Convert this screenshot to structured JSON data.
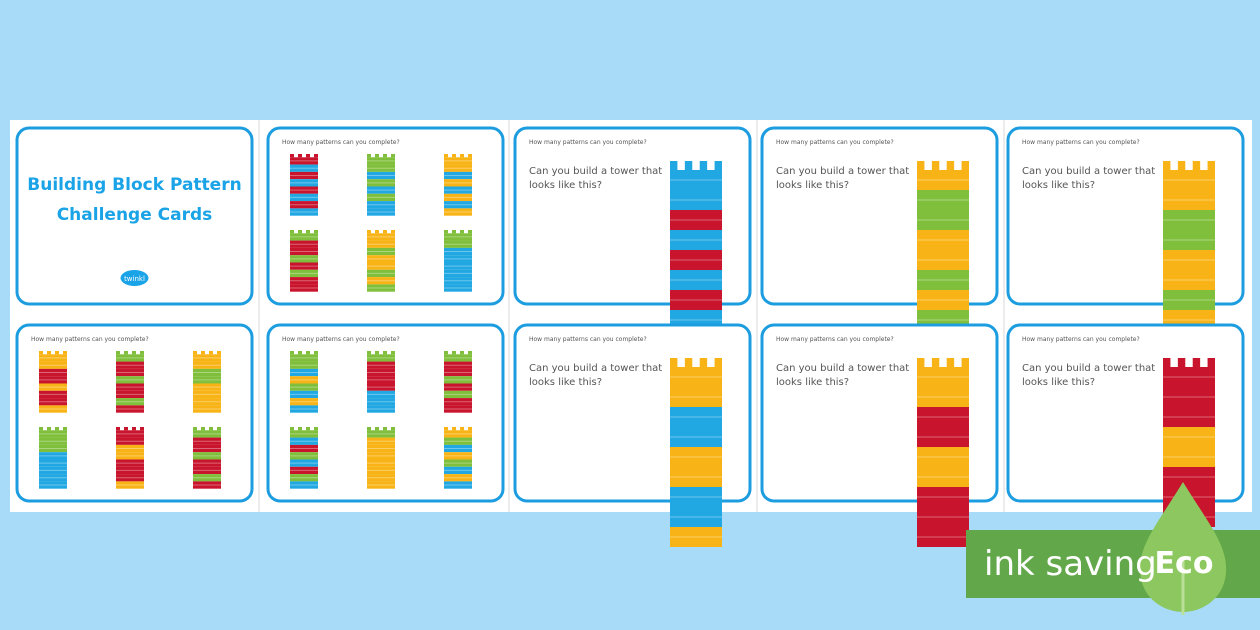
{
  "cards": [
    {
      "title_lines": [
        "Building Block Pattern",
        "Challenge Cards"
      ],
      "logo": "twinkl"
    },
    {
      "heading": "How many patterns can you complete?"
    },
    {
      "heading": "How many patterns can you complete?",
      "question_lines": [
        "Can you build a tower that",
        "looks like this?"
      ]
    },
    {
      "heading": "How many patterns can you complete?",
      "question_lines": [
        "Can you build a tower that",
        "looks like this?"
      ]
    },
    {
      "heading": "How many patterns can you complete?",
      "question_lines": [
        "Can you build a tower that",
        "looks like this?"
      ]
    },
    {
      "heading": "How many patterns can you complete?"
    },
    {
      "heading": "How many patterns can you complete?"
    },
    {
      "heading": "How many patterns can you complete?",
      "question_lines": [
        "Can you build a tower that",
        "looks like this?"
      ]
    },
    {
      "heading": "How many patterns can you complete?",
      "question_lines": [
        "Can you build a tower that",
        "looks like this?"
      ]
    },
    {
      "heading": "How many patterns can you complete?",
      "question_lines": [
        "Can you build a tower that",
        "looks like this?"
      ]
    }
  ],
  "badge": {
    "label": "ink saving",
    "eco": "Eco"
  }
}
